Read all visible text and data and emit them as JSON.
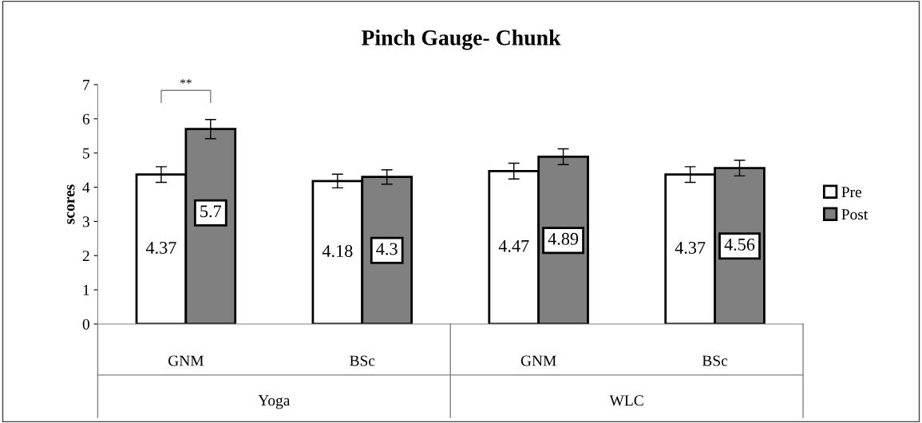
{
  "chart_data": {
    "type": "bar",
    "title": "Pinch Gauge- Chunk",
    "ylabel": "scores",
    "categories": [
      "GNM",
      "BSc",
      "GNM",
      "BSc"
    ],
    "series": [
      {
        "name": "Pre",
        "color": "#ffffff",
        "values": [
          4.37,
          4.18,
          4.47,
          4.37
        ],
        "errors": [
          0.23,
          0.2,
          0.23,
          0.23
        ]
      },
      {
        "name": "Post",
        "color": "#808080",
        "values": [
          5.7,
          4.3,
          4.89,
          4.56
        ],
        "errors": [
          0.28,
          0.21,
          0.23,
          0.23
        ]
      }
    ],
    "ylim": [
      0,
      7
    ],
    "yticks": [
      0,
      1,
      2,
      3,
      4,
      5,
      6,
      7
    ],
    "data_labels": true,
    "legend": "right",
    "grid": false,
    "annotations": [
      "**",
      "Yoga",
      "WLC"
    ]
  }
}
